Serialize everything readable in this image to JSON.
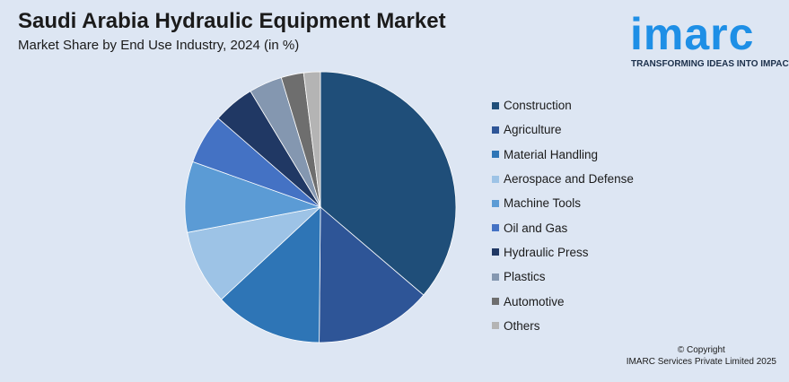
{
  "header": {
    "title": "Saudi Arabia Hydraulic Equipment Market",
    "subtitle": "Market Share by End Use Industry, 2024 (in %)"
  },
  "logo": {
    "word": "imarc",
    "tagline": "TRANSFORMING IDEAS INTO IMPACT",
    "color": "#1e8fe6"
  },
  "chart_data": {
    "type": "pie",
    "title": "Saudi Arabia Hydraulic Equipment Market",
    "subtitle": "Market Share by End Use Industry, 2024 (in %)",
    "legend_position": "right",
    "start_angle_deg": 0,
    "direction": "clockwise",
    "slices": [
      {
        "label": "Construction",
        "value": 36.5,
        "color": "#1f4e79"
      },
      {
        "label": "Agriculture",
        "value": 14.0,
        "color": "#2e5597"
      },
      {
        "label": "Material Handling",
        "value": 13.0,
        "color": "#2e75b6"
      },
      {
        "label": "Aerospace and Defense",
        "value": 9.0,
        "color": "#9dc3e6"
      },
      {
        "label": "Machine Tools",
        "value": 8.5,
        "color": "#5b9bd5"
      },
      {
        "label": "Oil and Gas",
        "value": 6.0,
        "color": "#4472c4"
      },
      {
        "label": "Hydraulic Press",
        "value": 5.0,
        "color": "#203864"
      },
      {
        "label": "Plastics",
        "value": 4.0,
        "color": "#8497b0"
      },
      {
        "label": "Automotive",
        "value": 2.7,
        "color": "#6e6e6e"
      },
      {
        "label": "Others",
        "value": 2.0,
        "color": "#b4b4b4"
      }
    ]
  },
  "footer": {
    "copyright_line1": "© Copyright",
    "copyright_line2": "IMARC Services Private Limited 2025"
  }
}
